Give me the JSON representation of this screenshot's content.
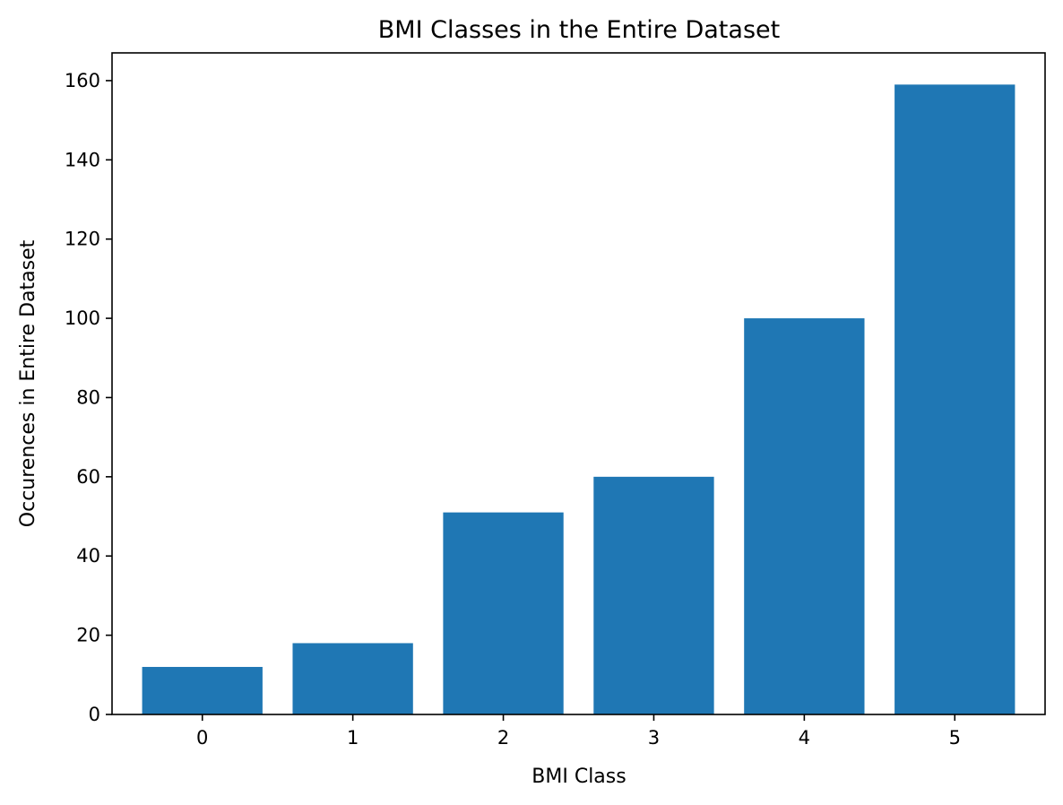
{
  "chart_data": {
    "type": "bar",
    "title": "BMI Classes in the Entire Dataset",
    "xlabel": "BMI Class",
    "ylabel": "Occurences in Entire Dataset",
    "categories": [
      "0",
      "1",
      "2",
      "3",
      "4",
      "5"
    ],
    "values": [
      12,
      18,
      51,
      60,
      100,
      159
    ],
    "ylim": [
      0,
      167
    ],
    "yticks": [
      0,
      20,
      40,
      60,
      80,
      100,
      120,
      140,
      160
    ],
    "grid": false,
    "legend": "none",
    "bar_color": "#1f77b4"
  }
}
